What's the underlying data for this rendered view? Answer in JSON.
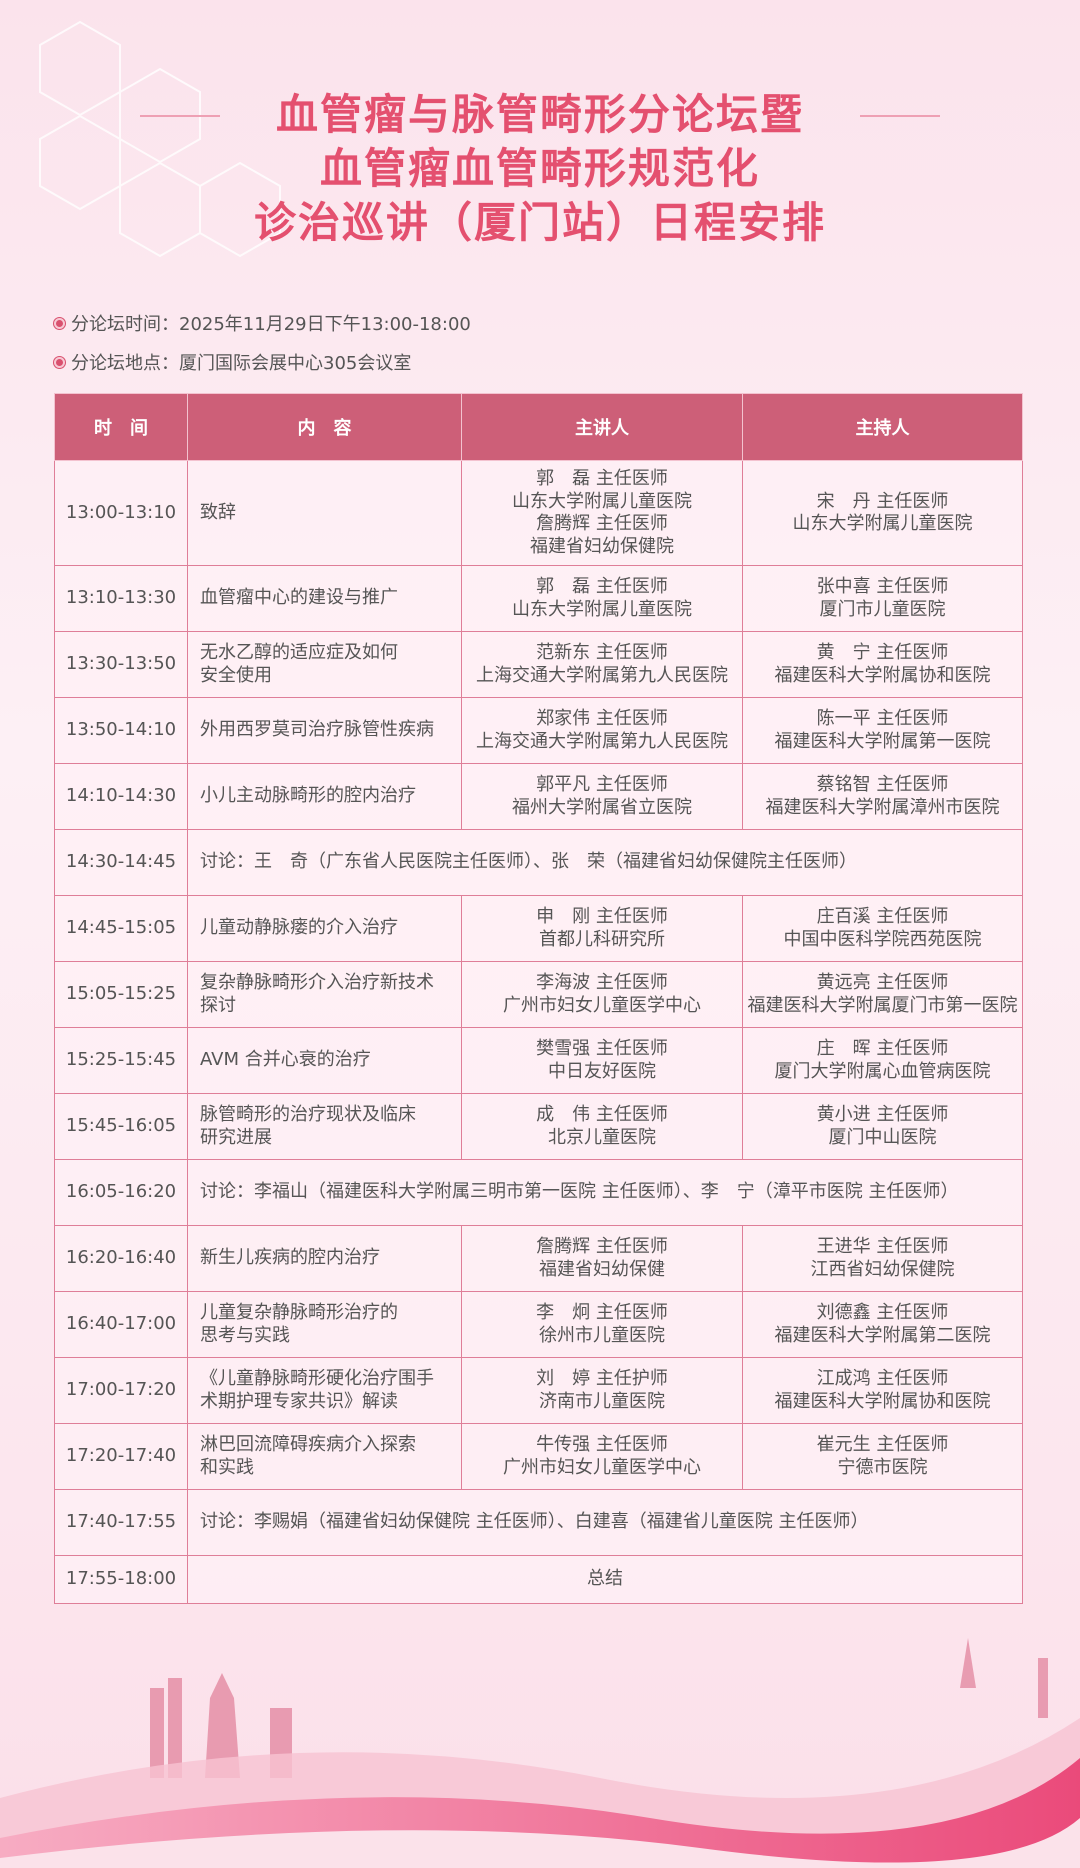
{
  "title": [
    "血管瘤与脉管畸形分论坛暨",
    "血管瘤血管畸形规范化",
    "诊治巡讲（厦门站）日程安排"
  ],
  "info": {
    "time": "分论坛时间：2025年11月29日下午13:00-18:00",
    "place": "分论坛地点：厦门国际会展中心305会议室"
  },
  "colors": {
    "accent": "#e4506f",
    "header_bg": "#cd5f78",
    "border": "#df7e98"
  },
  "headers": [
    "时　间",
    "内　容",
    "主讲人",
    "主持人"
  ],
  "rows": [
    {
      "time": "13:00-13:10",
      "content": "致辞",
      "speaker": "郭　磊 主任医师\n山东大学附属儿童医院\n詹腾辉 主任医师\n福建省妇幼保健院",
      "host": "宋　丹 主任医师\n山东大学附属儿童医院"
    },
    {
      "time": "13:10-13:30",
      "content": "血管瘤中心的建设与推广",
      "speaker": "郭　磊 主任医师\n山东大学附属儿童医院",
      "host": "张中喜 主任医师\n厦门市儿童医院"
    },
    {
      "time": "13:30-13:50",
      "content": "无水乙醇的适应症及如何\n安全使用",
      "speaker": "范新东 主任医师\n上海交通大学附属第九人民医院",
      "host": "黄　宁 主任医师\n福建医科大学附属协和医院"
    },
    {
      "time": "13:50-14:10",
      "content": "外用西罗莫司治疗脉管性疾病",
      "speaker": "郑家伟 主任医师\n上海交通大学附属第九人民医院",
      "host": "陈一平 主任医师\n福建医科大学附属第一医院"
    },
    {
      "time": "14:10-14:30",
      "content": "小儿主动脉畸形的腔内治疗",
      "speaker": "郭平凡 主任医师\n福州大学附属省立医院",
      "host": "蔡铭智 主任医师\n福建医科大学附属漳州市医院"
    },
    {
      "time": "14:30-14:45",
      "discussion": "讨论：王　奇（广东省人民医院主任医师）、张　荣（福建省妇幼保健院主任医师）"
    },
    {
      "time": "14:45-15:05",
      "content": "儿童动静脉瘘的介入治疗",
      "speaker": "申　刚 主任医师\n首都儿科研究所",
      "host": "庄百溪 主任医师\n中国中医科学院西苑医院"
    },
    {
      "time": "15:05-15:25",
      "content": "复杂静脉畸形介入治疗新技术\n探讨",
      "speaker": "李海波 主任医师\n广州市妇女儿童医学中心",
      "host": "黄远亮 主任医师\n福建医科大学附属厦门市第一医院"
    },
    {
      "time": "15:25-15:45",
      "content": "AVM 合并心衰的治疗",
      "speaker": "樊雪强 主任医师\n中日友好医院",
      "host": "庄　晖 主任医师\n厦门大学附属心血管病医院"
    },
    {
      "time": "15:45-16:05",
      "content": "脉管畸形的治疗现状及临床\n研究进展",
      "speaker": "成　伟 主任医师\n北京儿童医院",
      "host": "黄小进 主任医师\n厦门中山医院"
    },
    {
      "time": "16:05-16:20",
      "discussion": "讨论：李福山（福建医科大学附属三明市第一医院 主任医师）、李　宁（漳平市医院 主任医师）"
    },
    {
      "time": "16:20-16:40",
      "content": "新生儿疾病的腔内治疗",
      "speaker": "詹腾辉 主任医师\n福建省妇幼保健",
      "host": "王进华 主任医师\n江西省妇幼保健院"
    },
    {
      "time": "16:40-17:00",
      "content": "儿童复杂静脉畸形治疗的\n思考与实践",
      "speaker": "李　炯 主任医师\n徐州市儿童医院",
      "host": "刘德鑫 主任医师\n福建医科大学附属第二医院"
    },
    {
      "time": "17:00-17:20",
      "content": "《儿童静脉畸形硬化治疗围手\n术期护理专家共识》解读",
      "speaker": "刘　婷 主任护师\n济南市儿童医院",
      "host": "江成鸿 主任医师\n福建医科大学附属协和医院"
    },
    {
      "time": "17:20-17:40",
      "content": "淋巴回流障碍疾病介入探索\n和实践",
      "speaker": "牛传强 主任医师\n广州市妇女儿童医学中心",
      "host": "崔元生 主任医师\n宁德市医院"
    },
    {
      "time": "17:40-17:55",
      "discussion": "讨论：李赐娟（福建省妇幼保健院 主任医师）、白建喜（福建省儿童医院 主任医师）"
    },
    {
      "time": "17:55-18:00",
      "summary": "总结"
    }
  ]
}
